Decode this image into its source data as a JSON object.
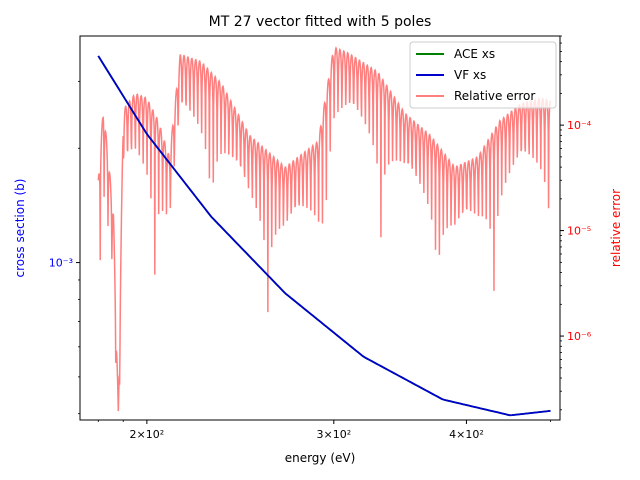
{
  "chart_data": {
    "type": "line",
    "title": "MT 27 vector fitted with 5 poles",
    "xlabel": "energy (eV)",
    "ylabel": "cross section (b)",
    "ylabel_right": "relative error",
    "xscale": "log",
    "yscale": "log",
    "yscale_right": "log",
    "xlim": [
      173,
      490
    ],
    "ylim": [
      0.000385,
      0.00395
    ],
    "ylim_right": [
      1.6e-07,
      0.0007
    ],
    "x_ticks": [
      {
        "value": 200,
        "label": "2×10²"
      },
      {
        "value": 300,
        "label": "3×10²"
      },
      {
        "value": 400,
        "label": "4×10²"
      }
    ],
    "y_ticks": [
      {
        "value": 0.001,
        "label": "10⁻³"
      }
    ],
    "y_ticks_right": [
      {
        "value": 1e-06,
        "label": "10⁻⁶"
      },
      {
        "value": 1e-05,
        "label": "10⁻⁵"
      },
      {
        "value": 0.0001,
        "label": "10⁻⁴"
      }
    ],
    "grid": false,
    "legend_position": "top-right",
    "series": [
      {
        "name": "ACE xs",
        "color": "#008000",
        "axis": "left",
        "x": [
          180,
          200,
          230,
          270,
          320,
          380,
          440,
          480
        ],
        "y": [
          0.0035,
          0.00218,
          0.00132,
          0.00083,
          0.000565,
          0.000436,
          0.000396,
          0.000407
        ]
      },
      {
        "name": "VF xs",
        "color": "#0000cc",
        "axis": "left",
        "x": [
          180,
          200,
          230,
          270,
          320,
          380,
          440,
          480
        ],
        "y": [
          0.0035,
          0.00218,
          0.00132,
          0.00083,
          0.000565,
          0.000436,
          0.000396,
          0.000407
        ]
      },
      {
        "name": "Relative error",
        "color": "#ff7f7f",
        "axis": "right",
        "x": [
          180,
          182,
          186,
          188,
          190,
          195,
          200,
          205,
          210,
          215,
          225,
          235,
          250,
          270,
          290,
          300,
          310,
          330,
          350,
          370,
          390,
          410,
          430,
          450,
          470,
          480
        ],
        "y": [
          3e-05,
          0.00015,
          1.5e-05,
          2e-07,
          0.00014,
          0.0002,
          0.00018,
          0.00011,
          5e-05,
          0.00047,
          0.0004,
          0.00025,
          8e-05,
          4e-05,
          7e-05,
          0.00055,
          0.00048,
          0.00032,
          0.00013,
          8e-05,
          4e-05,
          5e-05,
          0.00011,
          0.00016,
          0.00018,
          0.00017
        ]
      }
    ]
  }
}
